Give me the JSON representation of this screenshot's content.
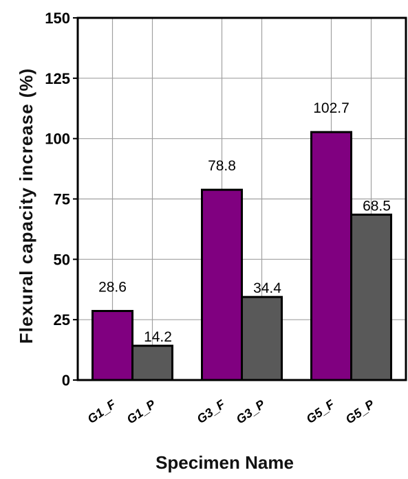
{
  "chart_data": {
    "type": "bar",
    "title": "",
    "xlabel": "Specimen Name",
    "ylabel": "Flexural capacity increase (%)",
    "ylim": [
      0,
      150
    ],
    "yticks": [
      0,
      25,
      50,
      75,
      100,
      125,
      150
    ],
    "grid": true,
    "categories": [
      "G1_F",
      "G1_P",
      "G3_F",
      "G3_P",
      "G5_F",
      "G5_P"
    ],
    "values": [
      28.6,
      14.2,
      78.8,
      34.4,
      102.7,
      68.5
    ],
    "value_labels": [
      "28.6",
      "14.2",
      "78.8",
      "34.4",
      "102.7",
      "68.5"
    ],
    "bar_colors": [
      "#800080",
      "#595959",
      "#800080",
      "#595959",
      "#800080",
      "#595959"
    ]
  }
}
